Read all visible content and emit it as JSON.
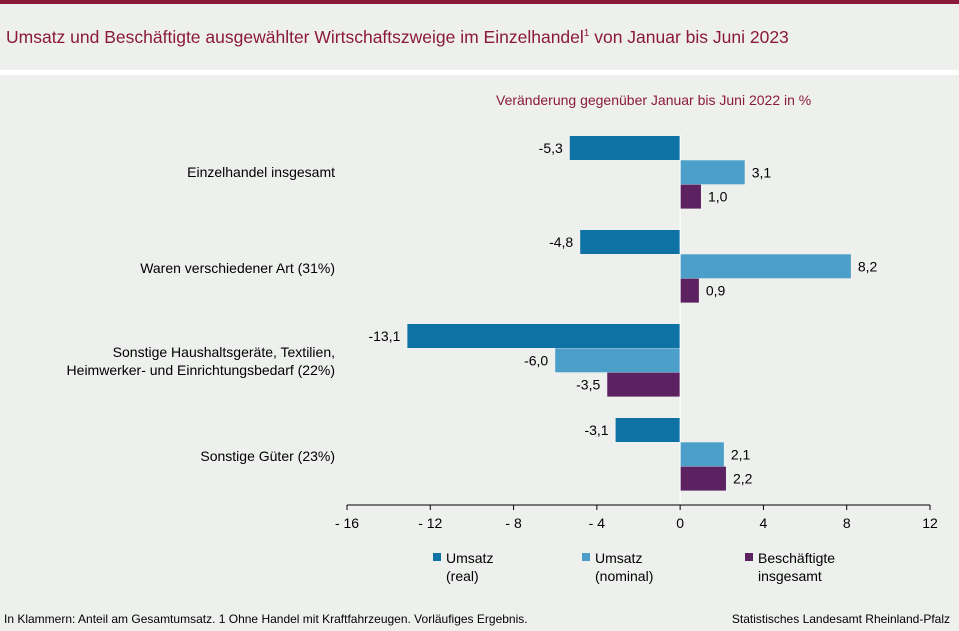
{
  "header": {
    "title": "Umsatz und Beschäftigte ausgewählter Wirtschaftszweige im Einzelhandel",
    "title_sup": "1",
    "title_end": " von Januar bis Juni 2023",
    "subtitle": "Veränderung  gegenüber  Januar bis Juni  2022 in %"
  },
  "chart_data": {
    "type": "bar",
    "orientation": "horizontal",
    "categories": [
      [
        "Einzelhandel insgesamt"
      ],
      [
        "Waren verschiedener Art (31%)"
      ],
      [
        "Sonstige Haushaltsgeräte, Textilien,",
        "Heimwerker- und Einrichtungsbedarf (22%)"
      ],
      [
        "Sonstige Güter (23%)"
      ]
    ],
    "series": [
      {
        "name": "Umsatz (real)",
        "color": "#0e72a4",
        "values": [
          -5.3,
          -4.8,
          -13.1,
          -3.1
        ],
        "labels": [
          "-5,3",
          "-4,8",
          "-13,1",
          "-3,1"
        ]
      },
      {
        "name": "Umsatz (nominal)",
        "color": "#4b9fc8",
        "values": [
          3.1,
          8.2,
          -6.0,
          2.1
        ],
        "labels": [
          "3,1",
          "8,2",
          "-6,0",
          "2,1"
        ]
      },
      {
        "name": "Beschäftigte insgesamt",
        "color": "#5b2160",
        "values": [
          1.0,
          0.9,
          -3.5,
          2.2
        ],
        "labels": [
          "1,0",
          "0,9",
          "-3,5",
          "2,2"
        ]
      }
    ],
    "xlim": [
      -16,
      12
    ],
    "xticks": [
      -16,
      -12,
      -8,
      -4,
      0,
      4,
      8,
      12
    ],
    "xtick_labels": [
      "- 16",
      "- 12",
      "- 8",
      "- 4",
      "0",
      "4",
      "8",
      "12"
    ],
    "grid": false,
    "legend_position": "bottom"
  },
  "legend": [
    {
      "line1": "Umsatz",
      "line2": "(real)",
      "color": "#0e72a4"
    },
    {
      "line1": "Umsatz",
      "line2": "(nominal)",
      "color": "#4b9fc8"
    },
    {
      "line1": "Beschäftigte",
      "line2": "insgesamt",
      "color": "#5b2160"
    }
  ],
  "footer": {
    "note": "In Klammern:  Anteil am Gesamtumsatz.  1 Ohne  Handel  mit Kraftfahrzeugen.  Vorläufiges  Ergebnis.",
    "source": "Statistisches Landesamt  Rheinland-Pfalz"
  }
}
